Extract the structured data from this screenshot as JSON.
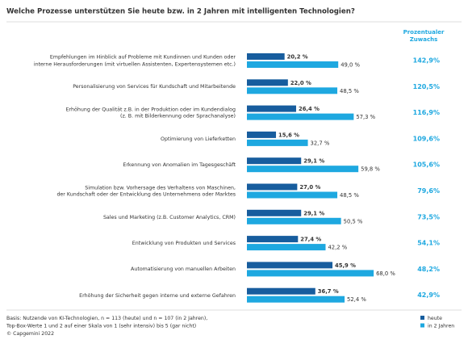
{
  "chart_data": {
    "type": "grouped-hbar",
    "title": "Welche Prozesse unterstützen Sie heute bzw. in 2 Jahren mit intelligenten Technologien?",
    "categories": [
      "Empfehlungen im Hinblick auf Probleme mit Kundinnen und Kunden oder\ninterne Herausforderungen (mit virtuellen Assistenten, Expertensystemen etc.)",
      "Personalisierung von Services für Kundschaft und Mitarbeitende",
      "Erhöhung der Qualität z.B. in der Produktion oder im Kundendialog\n(z. B. mit Bilderkennung oder Sprachanalyse)",
      "Optimierung von Lieferketten",
      "Erkennung von Anomalien im Tagesgeschäft",
      "Simulation bzw. Vorhersage des Verhaltens von Maschinen,\nder Kundschaft oder der Entwicklung des Unternehmens oder Marktes",
      "Sales und Marketing (z.B. Customer Analytics, CRM)",
      "Entwicklung von Produkten und Services",
      "Automatisierung von manuellen Arbeiten",
      "Erhöhung der Sicherheit gegen interne und externe Gefahren"
    ],
    "series": [
      {
        "name": "heute",
        "color": "#175d9e",
        "values": [
          20.2,
          22.0,
          26.4,
          15.6,
          29.1,
          27.0,
          29.1,
          27.4,
          45.9,
          36.7
        ],
        "value_labels": [
          "20,2 %",
          "22,0 %",
          "26,4 %",
          "15,6 %",
          "29,1 %",
          "27,0 %",
          "29,1 %",
          "27,4 %",
          "45,9 %",
          "36,7 %"
        ]
      },
      {
        "name": "in 2 Jahren",
        "color": "#1ea8e0",
        "values": [
          49.0,
          48.5,
          57.3,
          32.7,
          59.8,
          48.5,
          50.5,
          42.2,
          68.0,
          52.4
        ],
        "value_labels": [
          "49,0 %",
          "48,5 %",
          "57,3 %",
          "32,7 %",
          "59,8 %",
          "48,5 %",
          "50,5 %",
          "42,2 %",
          "68,0 %",
          "52,4 %"
        ]
      }
    ],
    "growth": {
      "title": "Prozentualer\nZuwachs",
      "values": [
        142.9,
        120.5,
        116.9,
        109.6,
        105.6,
        79.6,
        73.5,
        54.1,
        48.2,
        42.9
      ],
      "value_labels": [
        "142,9%",
        "120,5%",
        "116,9%",
        "109,6%",
        "105,6%",
        "79,6%",
        "73,5%",
        "54,1%",
        "48,2%",
        "42,9%"
      ]
    },
    "footnote": [
      "Basis: Nutzende von KI-Technologien, n = 113 (heute) und n = 107 (in 2 Jahren),",
      "Top-Box-Werte 1 und 2 auf einer Skala von 1 (sehr intensiv) bis 5 (gar nicht)",
      "© Capgemini 2022"
    ]
  }
}
